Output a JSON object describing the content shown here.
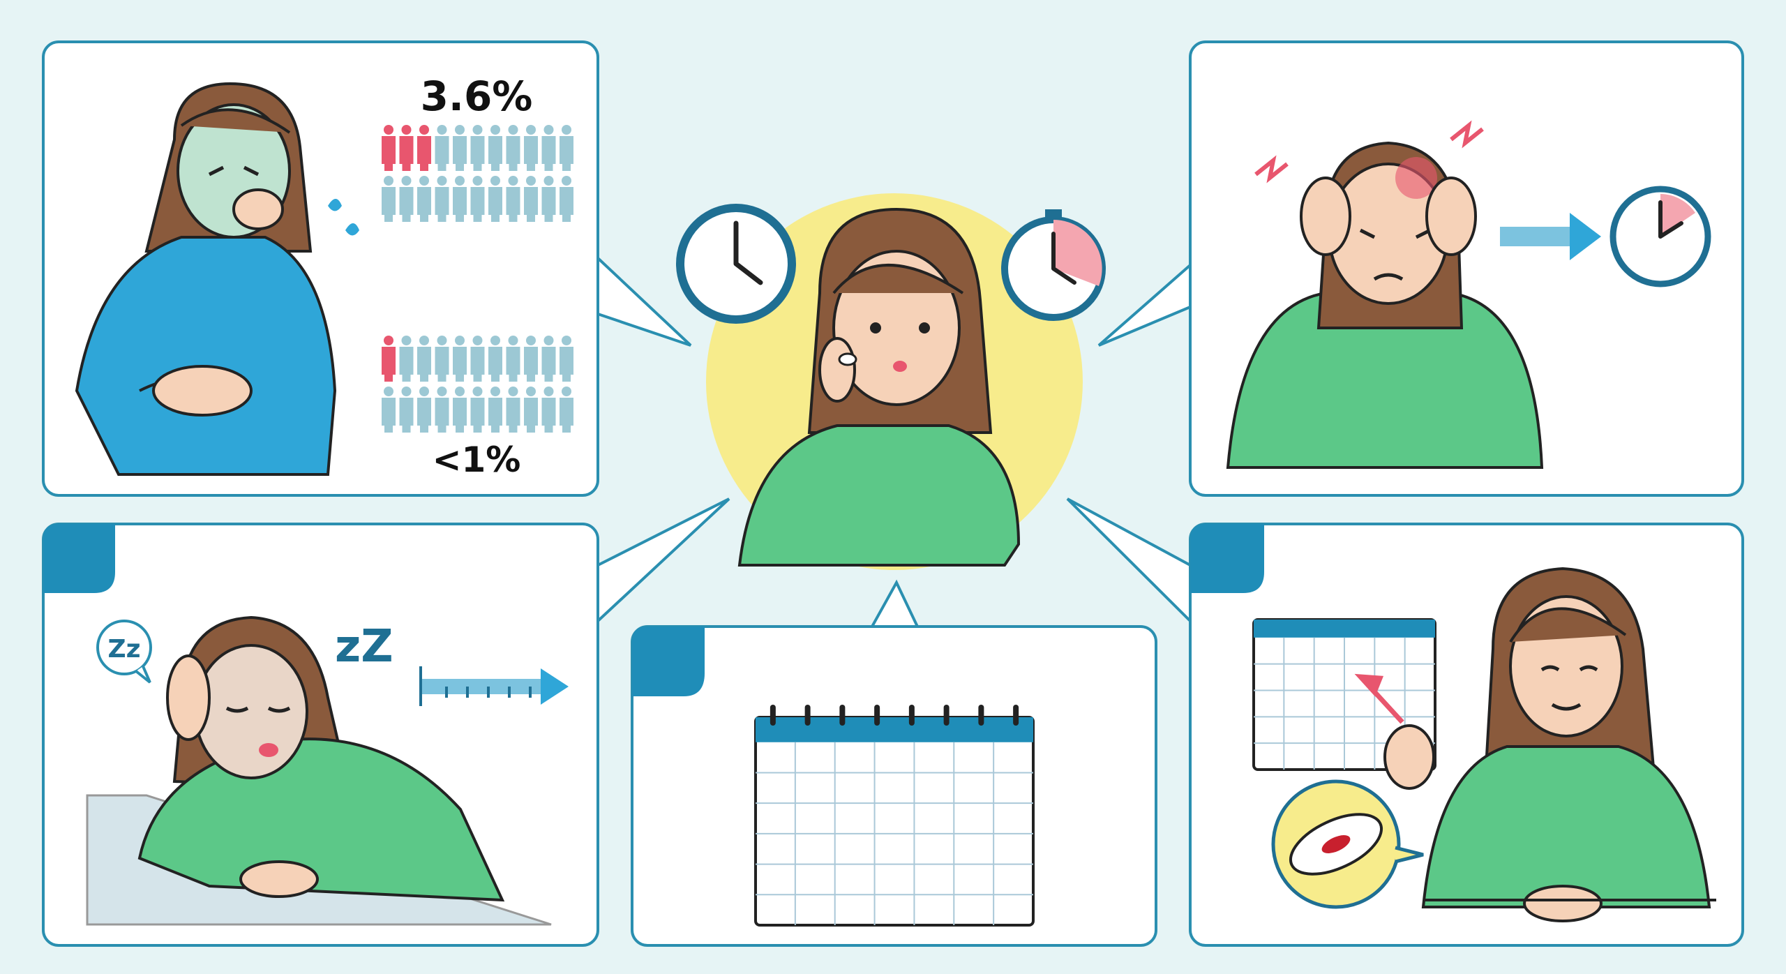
{
  "colors": {
    "background": "#e6f4f5",
    "panel_border": "#2a8fb0",
    "accent_blue": "#1f8db8",
    "shirt_green": "#5cc888",
    "shirt_blue": "#2fa6d8",
    "hair_brown": "#8a5a3c",
    "skin": "#f6d2b8",
    "highlight_red": "#e8566e",
    "pictogram_blue": "#9cc8d4",
    "circle_yellow": "#f7ec8c"
  },
  "panels": {
    "nausea": {
      "icon": "nausea-woman-illustration",
      "stat_top": "3.6%",
      "stat_bottom": "<1%",
      "pictogram_top": {
        "total": 22,
        "highlighted": 3
      },
      "pictogram_bottom": {
        "total": 22,
        "highlighted": 1
      }
    },
    "center": {
      "icon": "woman-taking-pill-illustration",
      "clocks": [
        "clock-icon",
        "stopwatch-icon"
      ]
    },
    "headache": {
      "icon": "headache-woman-illustration",
      "clock": "clock-icon",
      "arrow": "arrow-right-icon"
    },
    "drowsiness": {
      "icon": "sleepy-woman-illustration",
      "bubble_text": "Zz",
      "sleep_text": "zZ",
      "scale": "timeline-arrow-icon"
    },
    "calendar": {
      "icon": "calendar-icon"
    },
    "period": {
      "icon": "woman-pointing-calendar-illustration",
      "pad": "sanitary-pad-icon"
    }
  }
}
